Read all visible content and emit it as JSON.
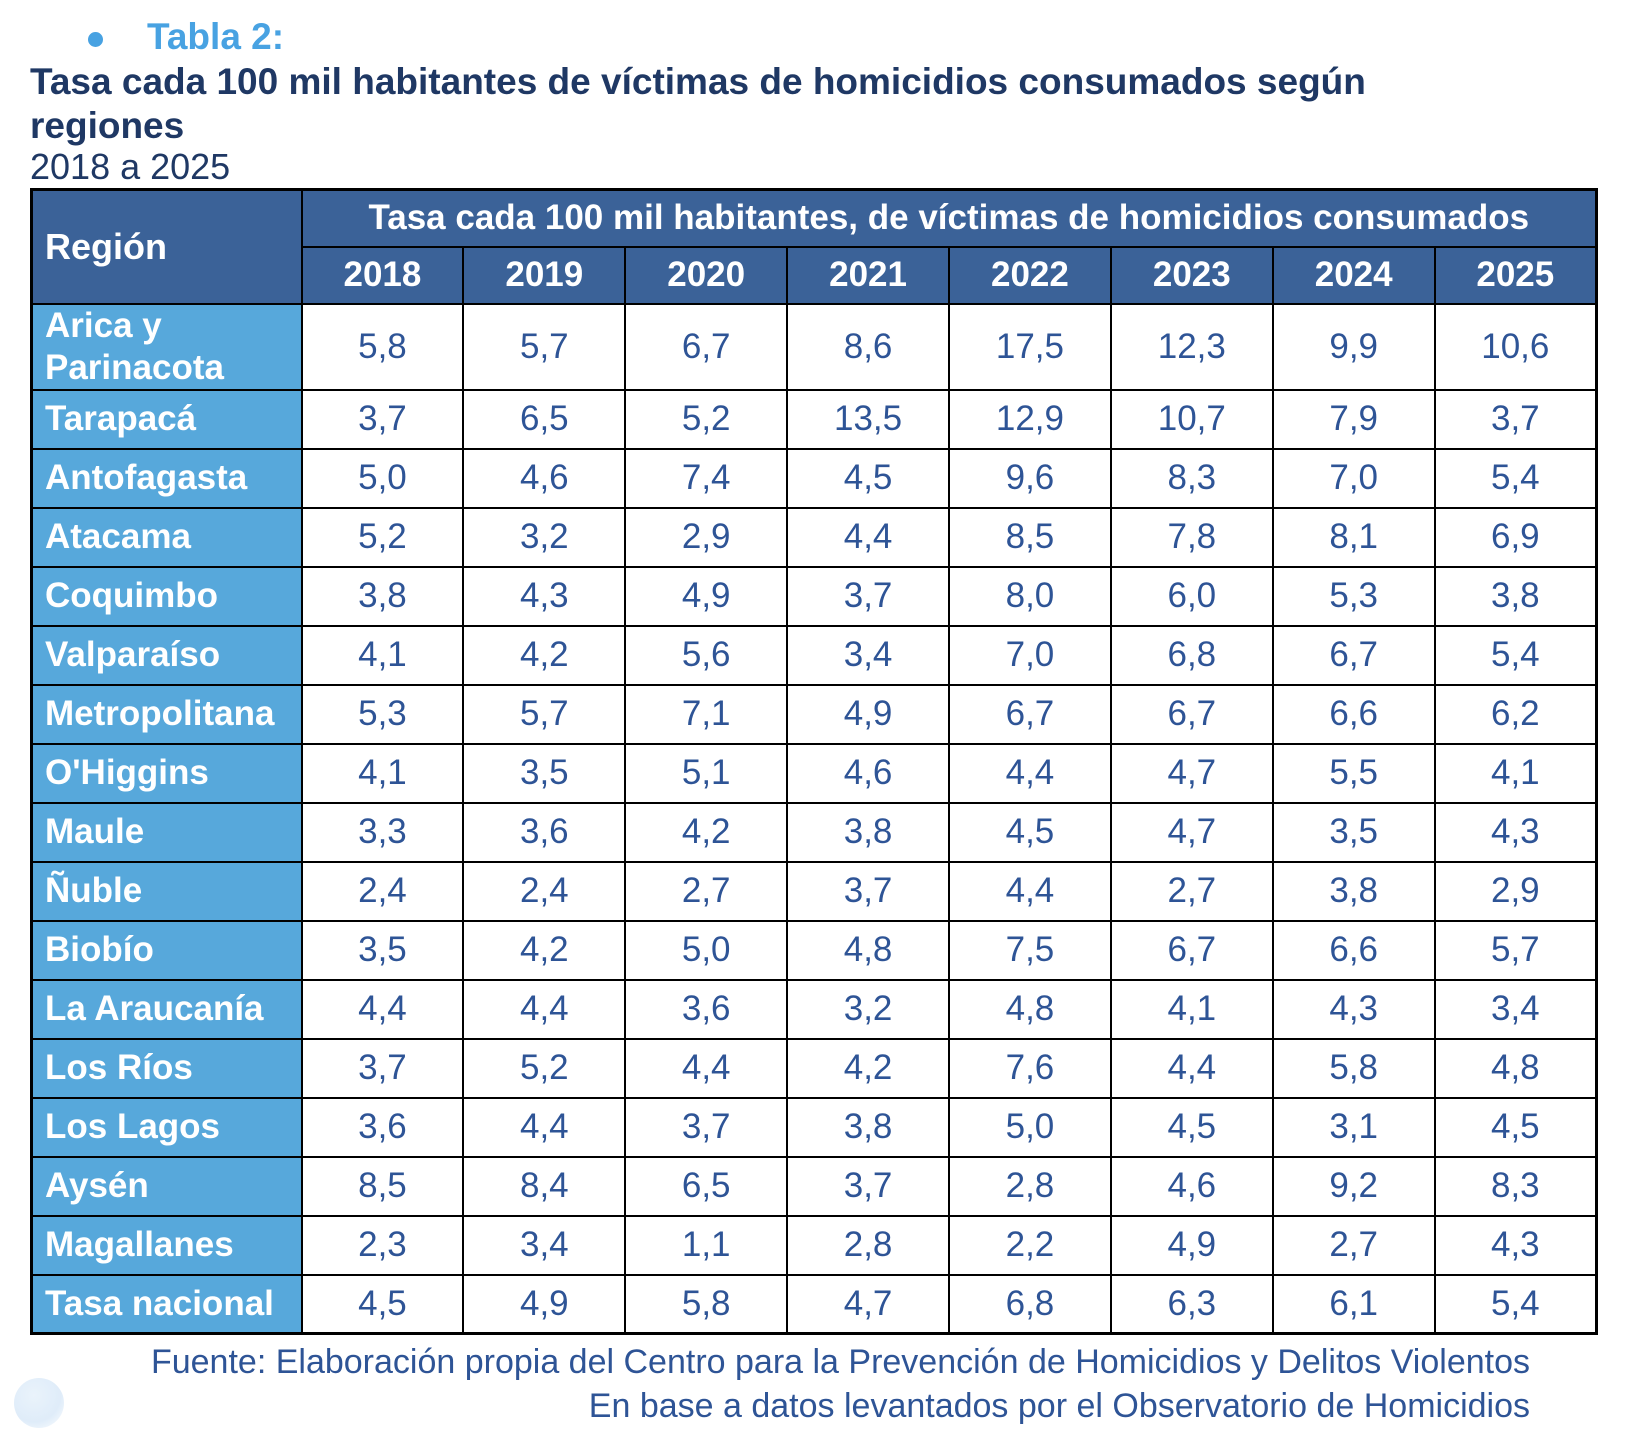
{
  "page": {
    "bullet_label": "Tabla 2:",
    "title": "Tasa cada 100 mil habitantes de víctimas de homicidios consumados según regiones",
    "subtitle": "2018 a 2025",
    "footer_line1": "Fuente: Elaboración propia del Centro para la Prevención de Homicidios y Delitos Violentos",
    "footer_line2": "En base a datos levantados por el Observatorio de Homicidios"
  },
  "colors": {
    "accent_light_blue": "#48A2E2",
    "title_navy": "#1F3864",
    "header_bg": "#3B6298",
    "region_bg": "#57A8DB",
    "value_text": "#2E5496",
    "border": "#000000"
  },
  "chart_data": {
    "type": "table",
    "title": "Tasa cada 100 mil habitantes de víctimas de homicidios consumados según regiones",
    "subtitle": "2018 a 2025",
    "region_header": "Región",
    "group_header": "Tasa cada 100 mil habitantes, de víctimas de homicidios consumados",
    "years": [
      "2018",
      "2019",
      "2020",
      "2021",
      "2022",
      "2023",
      "2024",
      "2025"
    ],
    "rows": [
      {
        "region": "Arica y Parinacota",
        "values": [
          "5,8",
          "5,7",
          "6,7",
          "8,6",
          "17,5",
          "12,3",
          "9,9",
          "10,6"
        ]
      },
      {
        "region": "Tarapacá",
        "values": [
          "3,7",
          "6,5",
          "5,2",
          "13,5",
          "12,9",
          "10,7",
          "7,9",
          "3,7"
        ]
      },
      {
        "region": "Antofagasta",
        "values": [
          "5,0",
          "4,6",
          "7,4",
          "4,5",
          "9,6",
          "8,3",
          "7,0",
          "5,4"
        ]
      },
      {
        "region": "Atacama",
        "values": [
          "5,2",
          "3,2",
          "2,9",
          "4,4",
          "8,5",
          "7,8",
          "8,1",
          "6,9"
        ]
      },
      {
        "region": "Coquimbo",
        "values": [
          "3,8",
          "4,3",
          "4,9",
          "3,7",
          "8,0",
          "6,0",
          "5,3",
          "3,8"
        ]
      },
      {
        "region": "Valparaíso",
        "values": [
          "4,1",
          "4,2",
          "5,6",
          "3,4",
          "7,0",
          "6,8",
          "6,7",
          "5,4"
        ]
      },
      {
        "region": "Metropolitana",
        "values": [
          "5,3",
          "5,7",
          "7,1",
          "4,9",
          "6,7",
          "6,7",
          "6,6",
          "6,2"
        ]
      },
      {
        "region": "O'Higgins",
        "values": [
          "4,1",
          "3,5",
          "5,1",
          "4,6",
          "4,4",
          "4,7",
          "5,5",
          "4,1"
        ]
      },
      {
        "region": "Maule",
        "values": [
          "3,3",
          "3,6",
          "4,2",
          "3,8",
          "4,5",
          "4,7",
          "3,5",
          "4,3"
        ]
      },
      {
        "region": "Ñuble",
        "values": [
          "2,4",
          "2,4",
          "2,7",
          "3,7",
          "4,4",
          "2,7",
          "3,8",
          "2,9"
        ]
      },
      {
        "region": "Biobío",
        "values": [
          "3,5",
          "4,2",
          "5,0",
          "4,8",
          "7,5",
          "6,7",
          "6,6",
          "5,7"
        ]
      },
      {
        "region": "La Araucanía",
        "values": [
          "4,4",
          "4,4",
          "3,6",
          "3,2",
          "4,8",
          "4,1",
          "4,3",
          "3,4"
        ]
      },
      {
        "region": "Los Ríos",
        "values": [
          "3,7",
          "5,2",
          "4,4",
          "4,2",
          "7,6",
          "4,4",
          "5,8",
          "4,8"
        ]
      },
      {
        "region": "Los Lagos",
        "values": [
          "3,6",
          "4,4",
          "3,7",
          "3,8",
          "5,0",
          "4,5",
          "3,1",
          "4,5"
        ]
      },
      {
        "region": "Aysén",
        "values": [
          "8,5",
          "8,4",
          "6,5",
          "3,7",
          "2,8",
          "4,6",
          "9,2",
          "8,3"
        ]
      },
      {
        "region": "Magallanes",
        "values": [
          "2,3",
          "3,4",
          "1,1",
          "2,8",
          "2,2",
          "4,9",
          "2,7",
          "4,3"
        ]
      },
      {
        "region": "Tasa nacional",
        "values": [
          "4,5",
          "4,9",
          "5,8",
          "4,7",
          "6,8",
          "6,3",
          "6,1",
          "5,4"
        ]
      }
    ]
  }
}
